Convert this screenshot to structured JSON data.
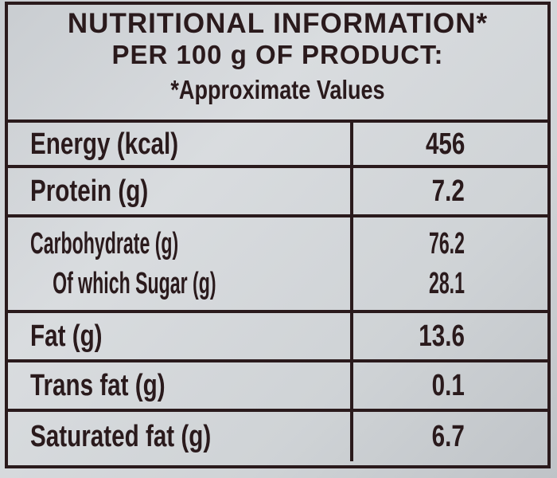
{
  "header": {
    "line1": "NUTRITIONAL INFORMATION*",
    "line2": "PER 100 g OF PRODUCT:",
    "line3": "*Approximate Values"
  },
  "rows": [
    {
      "name": "Energy (kcal)",
      "value": "456"
    },
    {
      "name": "Protein (g)",
      "value": "7.2"
    },
    {
      "name": "Carbohydrate (g)",
      "value": "76.2",
      "sub_name": "Of which Sugar (g)",
      "sub_value": "28.1"
    },
    {
      "name": "Fat (g)",
      "value": "13.6"
    },
    {
      "name": "Trans fat (g)",
      "value": "0.1"
    },
    {
      "name": "Saturated fat (g)",
      "value": "6.7"
    }
  ]
}
